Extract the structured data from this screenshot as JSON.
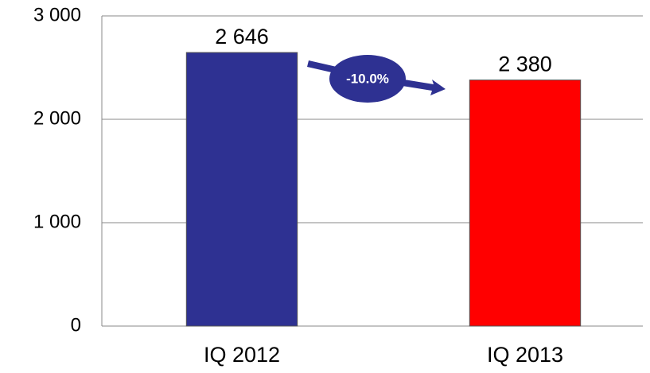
{
  "chart_data": {
    "type": "bar",
    "categories": [
      "IQ 2012",
      "IQ 2013"
    ],
    "values": [
      2646,
      2380
    ],
    "value_labels": [
      "2 646",
      "2 380"
    ],
    "colors": [
      "#2e3192",
      "#ff0000"
    ],
    "ylim": [
      0,
      3000
    ],
    "yticks": [
      0,
      {
        "value": 1000,
        "label": "1 000"
      },
      {
        "value": 2000,
        "label": "2 000"
      },
      {
        "value": 3000,
        "label": "3 000"
      }
    ],
    "grid": true,
    "annotation": "-10.0%"
  }
}
